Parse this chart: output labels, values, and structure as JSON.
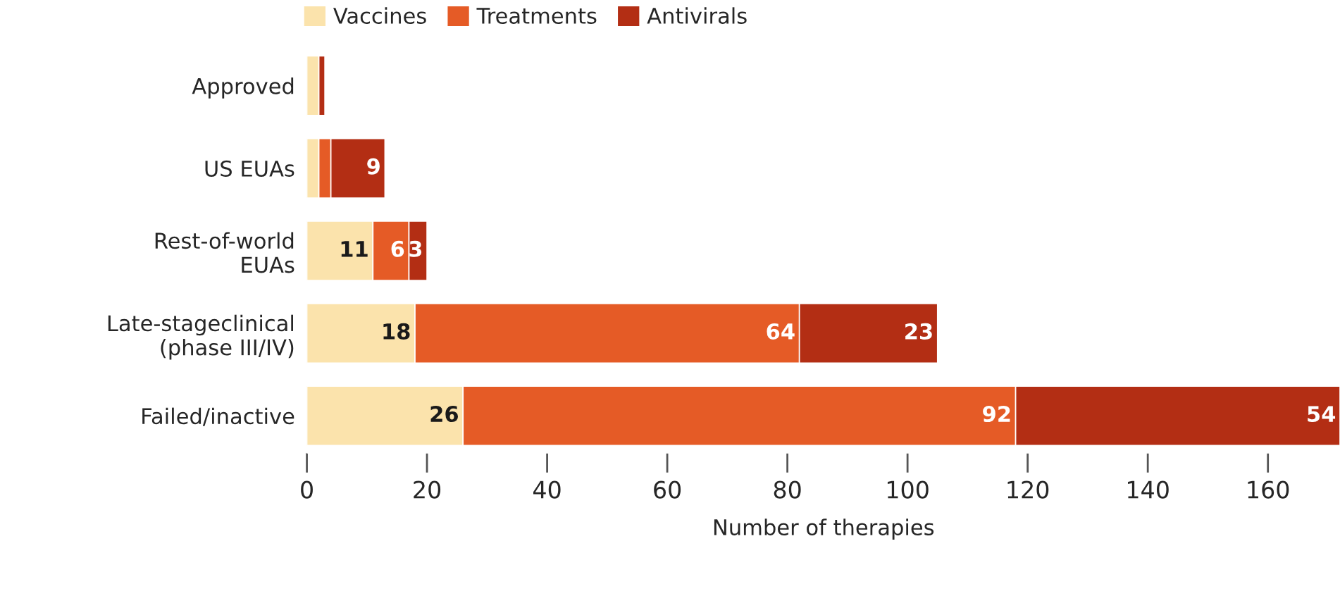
{
  "chart_data": {
    "type": "bar",
    "orientation": "horizontal",
    "stacked": true,
    "xlabel": "Number of therapies",
    "categories": [
      "Approved",
      "US EUAs",
      "Rest-of-world\nEUAs",
      "Late-stageclinical\n(phase III/IV)",
      "Failed/inactive"
    ],
    "series": [
      {
        "name": "Vaccines",
        "color": "#fbe3ac",
        "values": [
          2,
          2,
          11,
          18,
          26
        ],
        "value_labels": [
          null,
          null,
          "11",
          "18",
          "26"
        ]
      },
      {
        "name": "Treatments",
        "color": "#e55b26",
        "values": [
          null,
          2,
          6,
          64,
          92
        ],
        "value_labels": [
          null,
          null,
          "6",
          "64",
          "92"
        ]
      },
      {
        "name": "Antivirals",
        "color": "#b32e14",
        "values": [
          1,
          9,
          3,
          23,
          54
        ],
        "value_labels": [
          null,
          "9",
          "3",
          "23",
          "54"
        ]
      }
    ],
    "xlim": [
      0,
      172
    ],
    "xticks": [
      0,
      20,
      40,
      60,
      80,
      100,
      120,
      140,
      160
    ],
    "legend": "top",
    "grid": false
  }
}
